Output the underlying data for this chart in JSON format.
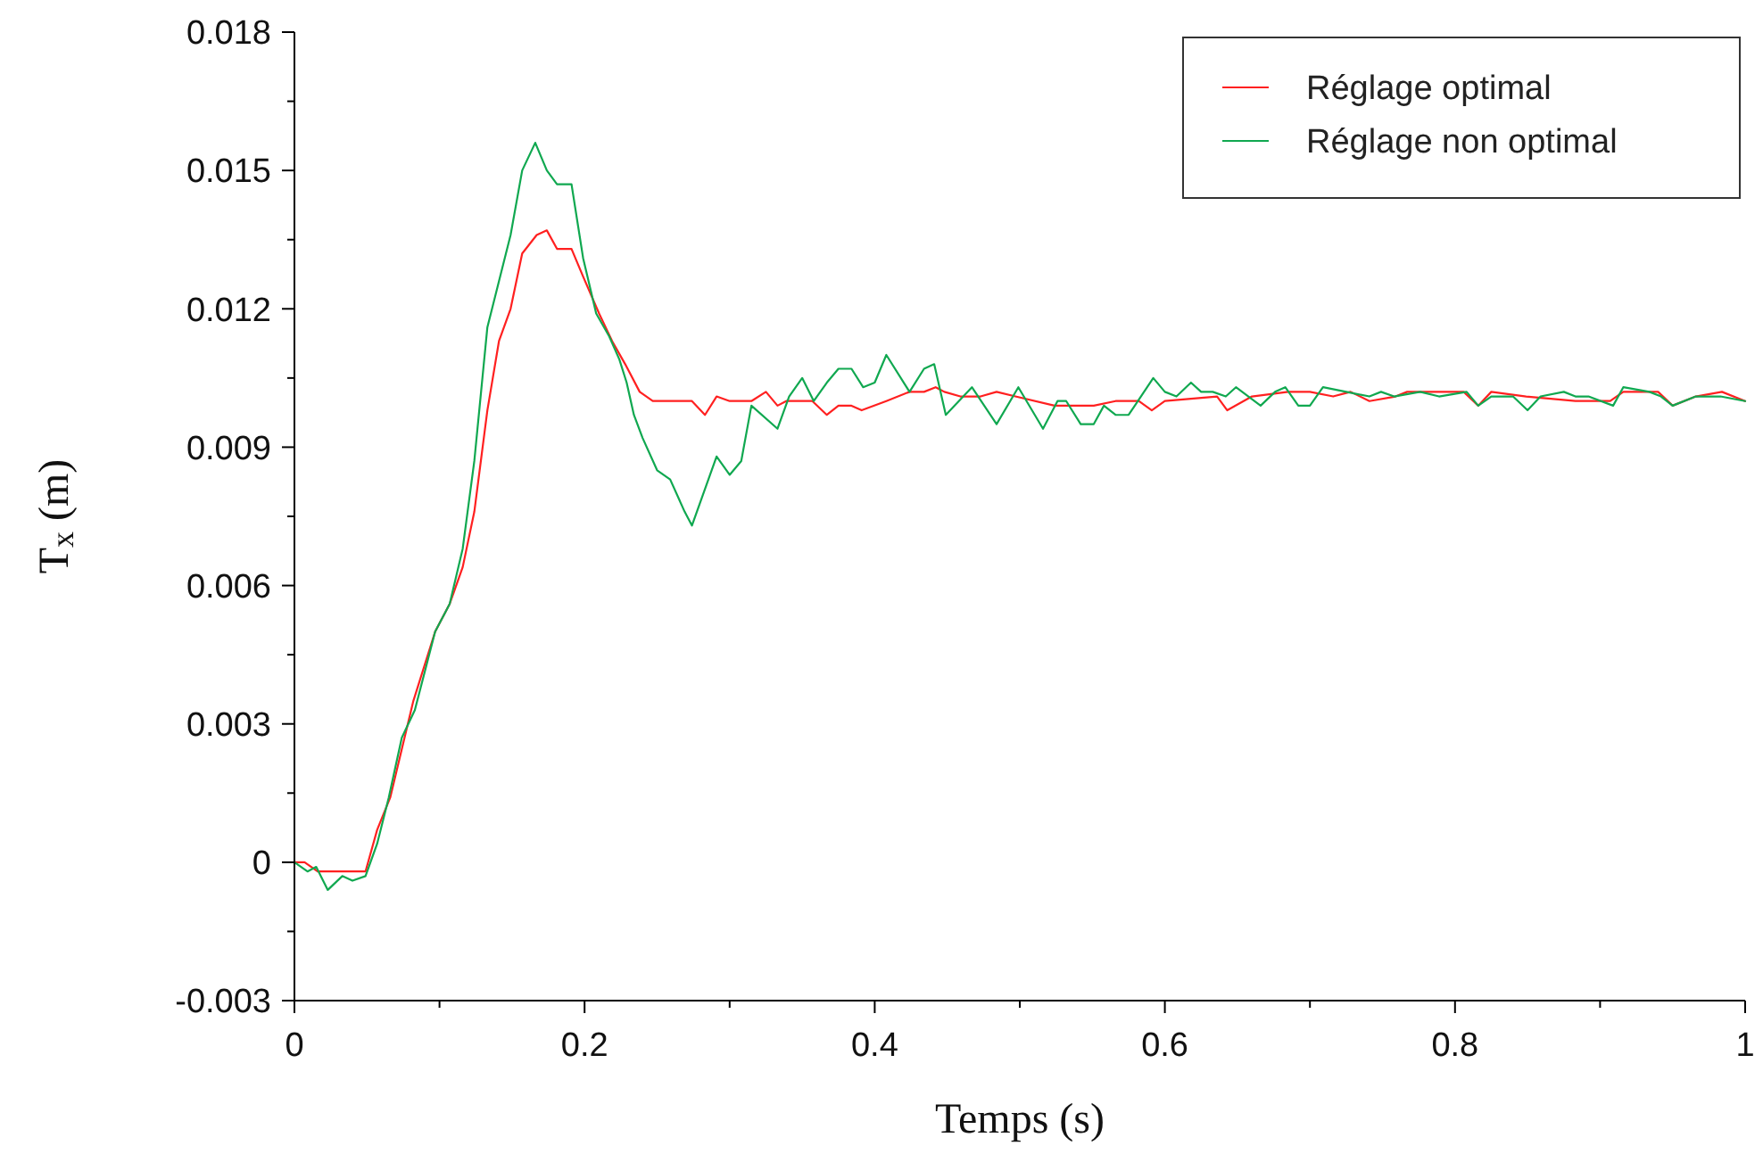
{
  "chart_data": {
    "type": "line",
    "xlabel": "Temps (s)",
    "ylabel": "T$_{x}$ (m)",
    "xlim": [
      0,
      1
    ],
    "ylim": [
      -0.003,
      0.018
    ],
    "xticks": [
      0,
      {
        "value": 0.1,
        "label": null
      },
      0.2,
      {
        "value": 0.3,
        "label": null
      },
      0.4,
      {
        "value": 0.5,
        "label": null
      },
      0.6,
      {
        "value": 0.7,
        "label": null
      },
      0.8,
      {
        "value": 0.9,
        "label": null
      },
      1
    ],
    "yticks": [
      -0.003,
      {
        "value": -0.0015,
        "label": null
      },
      0,
      {
        "value": 0.0015,
        "label": null
      },
      0.003,
      {
        "value": 0.0045,
        "label": null
      },
      0.006,
      {
        "value": 0.0075,
        "label": null
      },
      0.009,
      {
        "value": 0.0105,
        "label": null
      },
      0.012,
      {
        "value": 0.0135,
        "label": null
      },
      0.015,
      {
        "value": 0.0165,
        "label": null
      },
      0.018
    ],
    "grid": false,
    "legend": "top right",
    "line_style": "solid",
    "marker": "none",
    "series": [
      {
        "name": "Réglage optimal",
        "color": "#ff2020",
        "x": [
          0,
          0.007,
          0.016,
          0.033,
          0.049,
          0.057,
          0.066,
          0.082,
          0.097,
          0.107,
          0.116,
          0.124,
          0.133,
          0.141,
          0.149,
          0.157,
          0.167,
          0.174,
          0.181,
          0.191,
          0.199,
          0.21,
          0.219,
          0.228,
          0.238,
          0.247,
          0.258,
          0.274,
          0.283,
          0.291,
          0.3,
          0.315,
          0.325,
          0.333,
          0.339,
          0.357,
          0.367,
          0.375,
          0.384,
          0.391,
          0.408,
          0.424,
          0.434,
          0.442,
          0.448,
          0.459,
          0.473,
          0.484,
          0.497,
          0.524,
          0.551,
          0.566,
          0.582,
          0.591,
          0.6,
          0.636,
          0.643,
          0.66,
          0.685,
          0.7,
          0.716,
          0.728,
          0.741,
          0.759,
          0.767,
          0.806,
          0.816,
          0.825,
          0.849,
          0.883,
          0.907,
          0.916,
          0.94,
          0.95,
          0.966,
          0.984,
          1
        ],
        "values": [
          0,
          0,
          -0.0002,
          -0.0002,
          -0.0002,
          0.0007,
          0.0014,
          0.0035,
          0.005,
          0.0056,
          0.0064,
          0.0076,
          0.0098,
          0.0113,
          0.012,
          0.0132,
          0.0136,
          0.0137,
          0.0133,
          0.0133,
          0.0127,
          0.0119,
          0.0113,
          0.0108,
          0.0102,
          0.01,
          0.01,
          0.01,
          0.0097,
          0.0101,
          0.01,
          0.01,
          0.0102,
          0.0099,
          0.01,
          0.01,
          0.0097,
          0.0099,
          0.0099,
          0.0098,
          0.01,
          0.0102,
          0.0102,
          0.0103,
          0.0102,
          0.0101,
          0.0101,
          0.0102,
          0.0101,
          0.0099,
          0.0099,
          0.01,
          0.01,
          0.0098,
          0.01,
          0.0101,
          0.0098,
          0.0101,
          0.0102,
          0.0102,
          0.0101,
          0.0102,
          0.01,
          0.0101,
          0.0102,
          0.0102,
          0.0099,
          0.0102,
          0.0101,
          0.01,
          0.01,
          0.0102,
          0.0102,
          0.0099,
          0.0101,
          0.0102,
          0.01
        ]
      },
      {
        "name": "Réglage non optimal",
        "color": "#10a850",
        "x": [
          0,
          0.009,
          0.015,
          0.023,
          0.033,
          0.04,
          0.049,
          0.057,
          0.065,
          0.074,
          0.083,
          0.097,
          0.107,
          0.116,
          0.124,
          0.133,
          0.141,
          0.149,
          0.157,
          0.166,
          0.174,
          0.181,
          0.191,
          0.199,
          0.208,
          0.217,
          0.224,
          0.229,
          0.234,
          0.24,
          0.25,
          0.259,
          0.269,
          0.274,
          0.291,
          0.3,
          0.308,
          0.315,
          0.333,
          0.341,
          0.35,
          0.358,
          0.367,
          0.375,
          0.384,
          0.392,
          0.4,
          0.408,
          0.424,
          0.434,
          0.441,
          0.449,
          0.467,
          0.484,
          0.499,
          0.516,
          0.526,
          0.532,
          0.542,
          0.551,
          0.558,
          0.566,
          0.575,
          0.592,
          0.6,
          0.608,
          0.618,
          0.625,
          0.633,
          0.642,
          0.649,
          0.666,
          0.676,
          0.683,
          0.692,
          0.7,
          0.709,
          0.725,
          0.741,
          0.749,
          0.758,
          0.776,
          0.789,
          0.808,
          0.816,
          0.825,
          0.84,
          0.85,
          0.859,
          0.875,
          0.883,
          0.892,
          0.909,
          0.916,
          0.934,
          0.942,
          0.95,
          0.966,
          0.983,
          1
        ],
        "values": [
          0,
          -0.0002,
          -0.0001,
          -0.0006,
          -0.0003,
          -0.0004,
          -0.0003,
          0.0004,
          0.0014,
          0.0027,
          0.0033,
          0.005,
          0.0056,
          0.0068,
          0.0087,
          0.0116,
          0.0126,
          0.0136,
          0.015,
          0.0156,
          0.015,
          0.0147,
          0.0147,
          0.0131,
          0.0119,
          0.0114,
          0.0109,
          0.0104,
          0.0097,
          0.0092,
          0.0085,
          0.0083,
          0.0076,
          0.0073,
          0.0088,
          0.0084,
          0.0087,
          0.0099,
          0.0094,
          0.0101,
          0.0105,
          0.01,
          0.0104,
          0.0107,
          0.0107,
          0.0103,
          0.0104,
          0.011,
          0.0102,
          0.0107,
          0.0108,
          0.0097,
          0.0103,
          0.0095,
          0.0103,
          0.0094,
          0.01,
          0.01,
          0.0095,
          0.0095,
          0.0099,
          0.0097,
          0.0097,
          0.0105,
          0.0102,
          0.0101,
          0.0104,
          0.0102,
          0.0102,
          0.0101,
          0.0103,
          0.0099,
          0.0102,
          0.0103,
          0.0099,
          0.0099,
          0.0103,
          0.0102,
          0.0101,
          0.0102,
          0.0101,
          0.0102,
          0.0101,
          0.0102,
          0.0099,
          0.0101,
          0.0101,
          0.0098,
          0.0101,
          0.0102,
          0.0101,
          0.0101,
          0.0099,
          0.0103,
          0.0102,
          0.0101,
          0.0099,
          0.0101,
          0.0101,
          0.01
        ]
      }
    ]
  }
}
